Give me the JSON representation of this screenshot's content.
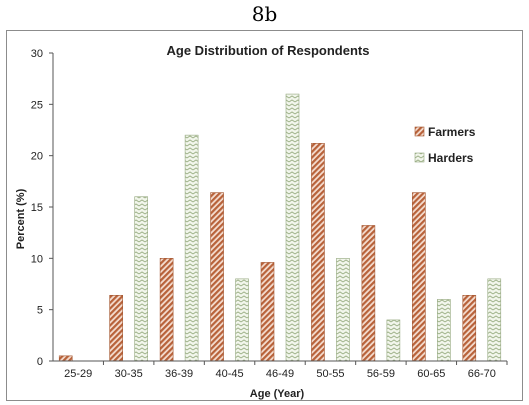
{
  "figure_label": "8b",
  "chart_data": {
    "type": "bar",
    "title": "Age Distribution of Respondents",
    "xlabel": "Age (Year)",
    "ylabel": "Percent (%)",
    "ylim": [
      0,
      30
    ],
    "yticks": [
      0,
      5,
      10,
      15,
      20,
      25,
      30
    ],
    "grid": false,
    "legend_position": "right",
    "categories": [
      "25-29",
      "30-35",
      "36-39",
      "40-45",
      "46-49",
      "50-55",
      "56-59",
      "60-65",
      "66-70"
    ],
    "series": [
      {
        "name": "Farmers",
        "values": [
          0.5,
          6.4,
          10,
          16.4,
          9.6,
          21.2,
          13.2,
          16.4,
          6.4
        ],
        "color": "#c0714a",
        "pattern": "diagonal-hatch"
      },
      {
        "name": "Harders",
        "values": [
          0,
          16,
          22,
          8,
          26,
          10,
          4,
          6,
          8
        ],
        "color": "#b9c9a6",
        "pattern": "zigzag-hatch"
      }
    ]
  }
}
